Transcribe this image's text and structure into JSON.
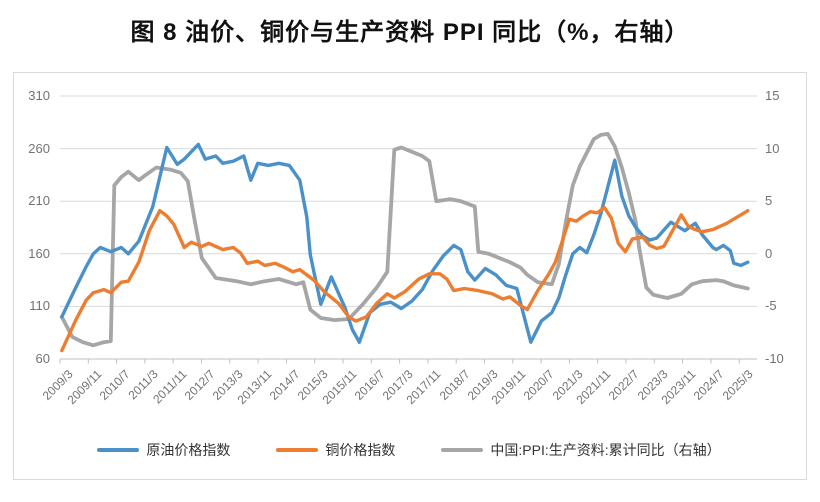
{
  "title": "图 8 油价、铜价与生产资料 PPI 同比（%，右轴）",
  "colors": {
    "oil_blue": "#4A90C9",
    "copper_orange": "#ED7D31",
    "ppi_gray": "#A6A6A6",
    "gridline": "#D9D9D9",
    "axis_line": "#BFBFBF",
    "tick_text": "#737373",
    "legend_text": "#333333",
    "frame_border": "#D9D9D9"
  },
  "chart_data": {
    "type": "line",
    "title": "图 8 油价、铜价与生产资料 PPI 同比（%，右轴）",
    "grid": "horizontal",
    "legend_position": "bottom",
    "x_axis": {
      "start": "2009/3",
      "end": "2025/7",
      "tick_interval_months": 8,
      "labels": [
        "2009/3",
        "2009/11",
        "2010/7",
        "2011/3",
        "2011/11",
        "2012/7",
        "2013/3",
        "2013/11",
        "2014/7",
        "2015/3",
        "2015/11",
        "2016/7",
        "2017/3",
        "2017/11",
        "2018/7",
        "2019/3",
        "2019/11",
        "2020/7",
        "2021/3",
        "2021/11",
        "2022/7",
        "2023/3",
        "2023/11",
        "2024/7",
        "2025/3"
      ]
    },
    "left_axis": {
      "range": [
        60,
        310
      ],
      "ticks": [
        310,
        260,
        210,
        160,
        110,
        60
      ]
    },
    "right_axis": {
      "range": [
        -10,
        15
      ],
      "ticks": [
        15,
        10,
        5,
        0,
        -5,
        -10
      ]
    },
    "series": [
      {
        "name": "中国:PPI:生产资料:累计同比（右轴）",
        "axis": "right",
        "color": "#A6A6A6",
        "points": [
          [
            "2009/3",
            -6
          ],
          [
            "2009/6",
            -7.9
          ],
          [
            "2009/9",
            -8.4
          ],
          [
            "2009/12",
            -8.7
          ],
          [
            "2010/3",
            -8.4
          ],
          [
            "2010/5",
            -8.3
          ],
          [
            "2010/6",
            6.5
          ],
          [
            "2010/8",
            7.3
          ],
          [
            "2010/10",
            7.8
          ],
          [
            "2011/1",
            7
          ],
          [
            "2011/3",
            7.5
          ],
          [
            "2011/6",
            8.2
          ],
          [
            "2011/10",
            8
          ],
          [
            "2012/1",
            7.7
          ],
          [
            "2012/3",
            6.9
          ],
          [
            "2012/5",
            3.1
          ],
          [
            "2012/7",
            -0.4
          ],
          [
            "2012/11",
            -2.3
          ],
          [
            "2013/5",
            -2.6
          ],
          [
            "2013/9",
            -2.9
          ],
          [
            "2014/1",
            -2.6
          ],
          [
            "2014/5",
            -2.4
          ],
          [
            "2014/10",
            -2.9
          ],
          [
            "2014/12",
            -2.7
          ],
          [
            "2015/2",
            -5.3
          ],
          [
            "2015/5",
            -6.1
          ],
          [
            "2015/9",
            -6.3
          ],
          [
            "2016/1",
            -6.2
          ],
          [
            "2016/5",
            -4.8
          ],
          [
            "2016/9",
            -3.2
          ],
          [
            "2016/12",
            -1.7
          ],
          [
            "2017/2",
            9.9
          ],
          [
            "2017/4",
            10.1
          ],
          [
            "2017/10",
            9.3
          ],
          [
            "2017/12",
            8.8
          ],
          [
            "2018/2",
            5
          ],
          [
            "2018/6",
            5.2
          ],
          [
            "2018/9",
            5
          ],
          [
            "2019/1",
            4.5
          ],
          [
            "2019/2",
            0.2
          ],
          [
            "2019/5",
            0
          ],
          [
            "2019/8",
            -0.4
          ],
          [
            "2019/11",
            -0.8
          ],
          [
            "2020/2",
            -1.3
          ],
          [
            "2020/4",
            -2
          ],
          [
            "2020/7",
            -2.7
          ],
          [
            "2020/11",
            -2.9
          ],
          [
            "2021/1",
            -1
          ],
          [
            "2021/3",
            3
          ],
          [
            "2021/5",
            6.5
          ],
          [
            "2021/7",
            8.3
          ],
          [
            "2021/9",
            9.6
          ],
          [
            "2021/11",
            10.9
          ],
          [
            "2022/1",
            11.3
          ],
          [
            "2022/3",
            11.4
          ],
          [
            "2022/5",
            10.2
          ],
          [
            "2022/7",
            8.2
          ],
          [
            "2022/9",
            5.8
          ],
          [
            "2022/11",
            3
          ],
          [
            "2022/12",
            0.5
          ],
          [
            "2023/2",
            -3.2
          ],
          [
            "2023/4",
            -3.9
          ],
          [
            "2023/8",
            -4.2
          ],
          [
            "2023/12",
            -3.8
          ],
          [
            "2024/3",
            -2.9
          ],
          [
            "2024/6",
            -2.6
          ],
          [
            "2024/10",
            -2.5
          ],
          [
            "2024/12",
            -2.6
          ],
          [
            "2025/3",
            -3
          ],
          [
            "2025/7",
            -3.3
          ]
        ]
      },
      {
        "name": "原油价格指数",
        "axis": "left",
        "color": "#4A90C9",
        "points": [
          [
            "2009/3",
            100
          ],
          [
            "2009/7",
            128
          ],
          [
            "2009/10",
            148
          ],
          [
            "2009/12",
            160
          ],
          [
            "2010/2",
            166
          ],
          [
            "2010/5",
            162
          ],
          [
            "2010/8",
            166
          ],
          [
            "2010/10",
            160
          ],
          [
            "2011/1",
            172
          ],
          [
            "2011/5",
            205
          ],
          [
            "2011/9",
            261
          ],
          [
            "2011/12",
            245
          ],
          [
            "2012/2",
            250
          ],
          [
            "2012/6",
            264
          ],
          [
            "2012/8",
            250
          ],
          [
            "2012/11",
            253
          ],
          [
            "2013/1",
            246
          ],
          [
            "2013/4",
            248
          ],
          [
            "2013/7",
            253
          ],
          [
            "2013/9",
            230
          ],
          [
            "2013/11",
            246
          ],
          [
            "2014/2",
            244
          ],
          [
            "2014/5",
            246
          ],
          [
            "2014/8",
            244
          ],
          [
            "2014/11",
            230
          ],
          [
            "2015/1",
            195
          ],
          [
            "2015/2",
            159
          ],
          [
            "2015/5",
            112
          ],
          [
            "2015/8",
            138
          ],
          [
            "2015/12",
            108
          ],
          [
            "2016/2",
            88
          ],
          [
            "2016/4",
            76
          ],
          [
            "2016/7",
            104
          ],
          [
            "2016/10",
            112
          ],
          [
            "2017/1",
            114
          ],
          [
            "2017/4",
            108
          ],
          [
            "2017/7",
            115
          ],
          [
            "2017/10",
            126
          ],
          [
            "2018/1",
            144
          ],
          [
            "2018/4",
            158
          ],
          [
            "2018/7",
            168
          ],
          [
            "2018/9",
            164
          ],
          [
            "2018/11",
            143
          ],
          [
            "2019/1",
            135
          ],
          [
            "2019/4",
            146
          ],
          [
            "2019/7",
            140
          ],
          [
            "2019/10",
            130
          ],
          [
            "2020/1",
            127
          ],
          [
            "2020/5",
            76
          ],
          [
            "2020/8",
            96
          ],
          [
            "2020/11",
            104
          ],
          [
            "2021/1",
            118
          ],
          [
            "2021/3",
            140
          ],
          [
            "2021/5",
            160
          ],
          [
            "2021/7",
            166
          ],
          [
            "2021/9",
            161
          ],
          [
            "2021/11",
            178
          ],
          [
            "2022/1",
            198
          ],
          [
            "2022/5",
            249
          ],
          [
            "2022/7",
            215
          ],
          [
            "2022/9",
            196
          ],
          [
            "2022/11",
            185
          ],
          [
            "2023/1",
            177
          ],
          [
            "2023/3",
            173
          ],
          [
            "2023/5",
            175
          ],
          [
            "2023/9",
            190
          ],
          [
            "2024/1",
            182
          ],
          [
            "2024/4",
            189
          ],
          [
            "2024/6",
            178
          ],
          [
            "2024/9",
            166
          ],
          [
            "2024/10",
            164
          ],
          [
            "2024/12",
            168
          ],
          [
            "2025/2",
            163
          ],
          [
            "2025/3",
            151
          ],
          [
            "2025/5",
            149
          ],
          [
            "2025/7",
            152
          ]
        ]
      },
      {
        "name": "铜价格指数",
        "axis": "left",
        "color": "#ED7D31",
        "points": [
          [
            "2009/3",
            68
          ],
          [
            "2009/7",
            97
          ],
          [
            "2009/10",
            116
          ],
          [
            "2009/12",
            123
          ],
          [
            "2010/3",
            126
          ],
          [
            "2010/5",
            123
          ],
          [
            "2010/8",
            133
          ],
          [
            "2010/10",
            134
          ],
          [
            "2011/1",
            152
          ],
          [
            "2011/4",
            182
          ],
          [
            "2011/7",
            201
          ],
          [
            "2011/9",
            196
          ],
          [
            "2011/11",
            188
          ],
          [
            "2012/2",
            166
          ],
          [
            "2012/4",
            171
          ],
          [
            "2012/7",
            167
          ],
          [
            "2012/9",
            170
          ],
          [
            "2013/1",
            164
          ],
          [
            "2013/4",
            166
          ],
          [
            "2013/6",
            161
          ],
          [
            "2013/8",
            151
          ],
          [
            "2013/11",
            153
          ],
          [
            "2014/1",
            149
          ],
          [
            "2014/4",
            151
          ],
          [
            "2014/6",
            148
          ],
          [
            "2014/9",
            143
          ],
          [
            "2014/11",
            145
          ],
          [
            "2015/3",
            135
          ],
          [
            "2015/6",
            124
          ],
          [
            "2015/10",
            113
          ],
          [
            "2016/1",
            100
          ],
          [
            "2016/3",
            96
          ],
          [
            "2016/6",
            100
          ],
          [
            "2016/9",
            113
          ],
          [
            "2016/12",
            122
          ],
          [
            "2017/2",
            118
          ],
          [
            "2017/5",
            124
          ],
          [
            "2017/9",
            136
          ],
          [
            "2017/12",
            141
          ],
          [
            "2018/3",
            141
          ],
          [
            "2018/5",
            136
          ],
          [
            "2018/7",
            125
          ],
          [
            "2018/10",
            127
          ],
          [
            "2019/2",
            125
          ],
          [
            "2019/6",
            122
          ],
          [
            "2019/9",
            117
          ],
          [
            "2019/11",
            119
          ],
          [
            "2020/2",
            111
          ],
          [
            "2020/4",
            107
          ],
          [
            "2020/7",
            125
          ],
          [
            "2020/10",
            140
          ],
          [
            "2020/12",
            152
          ],
          [
            "2021/2",
            172
          ],
          [
            "2021/4",
            193
          ],
          [
            "2021/6",
            191
          ],
          [
            "2021/8",
            196
          ],
          [
            "2021/10",
            200
          ],
          [
            "2021/12",
            199
          ],
          [
            "2022/2",
            204
          ],
          [
            "2022/4",
            194
          ],
          [
            "2022/6",
            170
          ],
          [
            "2022/8",
            162
          ],
          [
            "2022/10",
            174
          ],
          [
            "2023/1",
            176
          ],
          [
            "2023/3",
            168
          ],
          [
            "2023/5",
            165
          ],
          [
            "2023/7",
            167
          ],
          [
            "2023/12",
            197
          ],
          [
            "2024/2",
            186
          ],
          [
            "2024/4",
            183
          ],
          [
            "2024/6",
            181
          ],
          [
            "2024/9",
            183
          ],
          [
            "2024/11",
            186
          ],
          [
            "2025/1",
            189
          ],
          [
            "2025/3",
            193
          ],
          [
            "2025/5",
            197
          ],
          [
            "2025/7",
            201
          ]
        ]
      }
    ],
    "legend": [
      "原油价格指数",
      "铜价格指数",
      "中国:PPI:生产资料:累计同比（右轴）"
    ]
  }
}
